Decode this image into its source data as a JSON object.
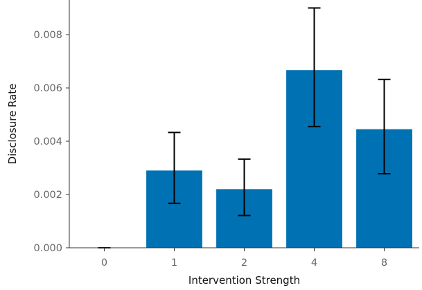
{
  "chart_data": {
    "type": "bar",
    "title": "",
    "xlabel": "Intervention Strength",
    "ylabel": "Disclosure Rate",
    "categories": [
      "0",
      "1",
      "2",
      "4",
      "8"
    ],
    "values": [
      0.0,
      0.0029,
      0.0022,
      0.00667,
      0.00445
    ],
    "error_bars": [
      {
        "low": 0.0,
        "high": 0.0
      },
      {
        "low": 0.00167,
        "high": 0.00433
      },
      {
        "low": 0.00121,
        "high": 0.00333
      },
      {
        "low": 0.00455,
        "high": 0.009
      },
      {
        "low": 0.00278,
        "high": 0.00632
      }
    ],
    "ylim": [
      0,
      0.0093
    ],
    "yticks": [
      0.0,
      0.002,
      0.004,
      0.006,
      0.008
    ],
    "ytick_labels": [
      "0.000",
      "0.002",
      "0.004",
      "0.006",
      "0.008"
    ],
    "grid": false,
    "legend": "none",
    "colors": {
      "bar": "#0071b2",
      "error_bar": "#000000",
      "axis": "#333333",
      "tick_label": "#666666"
    }
  }
}
